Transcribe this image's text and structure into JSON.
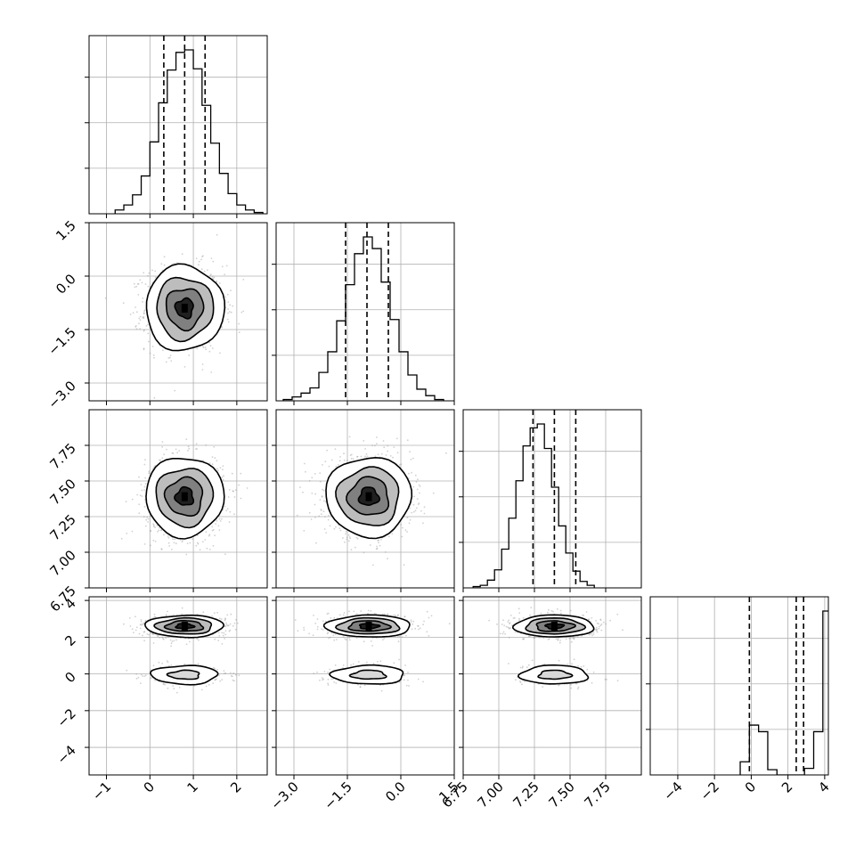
{
  "chart_data": {
    "type": "corner",
    "grid": true,
    "colors": {
      "hist": "#000000",
      "contour": "#000000",
      "samples": "#9a9a9a",
      "grid": "#b0b0b0",
      "quantile": "#000000"
    },
    "parameters": [
      {
        "range": [
          -1.4,
          2.7
        ],
        "ticks": [
          -1,
          0,
          1,
          2
        ],
        "tick_labels": [
          "−1",
          "0",
          "1",
          "2"
        ],
        "quantiles": [
          0.32,
          0.8,
          1.27
        ],
        "hist": {
          "edges": [
            -0.9,
            0.2
          ],
          "bin_width": 0.2,
          "counts": [
            3,
            7,
            15,
            30,
            57,
            88,
            114,
            128,
            130,
            115,
            86,
            56,
            32,
            16,
            7,
            3,
            1
          ],
          "hist_start": -0.8
        },
        "mean": 0.8,
        "sd": 0.45
      },
      {
        "range": [
          -3.5,
          1.5
        ],
        "ticks": [
          -3.0,
          -1.5,
          0.0,
          1.5
        ],
        "tick_labels": [
          "−3.0",
          "−1.5",
          "0.0",
          "1.5"
        ],
        "quantiles": [
          -1.55,
          -0.95,
          -0.35
        ],
        "hist": {
          "hist_start": -3.3,
          "bin_width": 0.25,
          "counts": [
            1,
            3,
            6,
            10,
            22,
            38,
            62,
            90,
            114,
            127,
            118,
            92,
            63,
            38,
            20,
            9,
            4,
            1
          ]
        },
        "mean": -0.9,
        "sd": 0.6
      },
      {
        "range": [
          6.75,
          8.0
        ],
        "ticks": [
          6.75,
          7.0,
          7.25,
          7.5,
          7.75
        ],
        "tick_labels": [
          "6.75",
          "7.00",
          "7.25",
          "7.50",
          "7.75"
        ],
        "quantiles": [
          7.24,
          7.39,
          7.54
        ],
        "hist": {
          "hist_start": 6.82,
          "bin_width": 0.05,
          "counts": [
            1,
            2,
            6,
            14,
            30,
            54,
            83,
            110,
            124,
            127,
            108,
            78,
            48,
            27,
            13,
            5,
            2
          ]
        },
        "mean": 7.39,
        "sd": 0.14
      },
      {
        "range": [
          -5.5,
          4.2
        ],
        "ticks": [
          -4,
          -2,
          0,
          2,
          4
        ],
        "tick_labels": [
          "−4",
          "−2",
          "0",
          "2",
          "4"
        ],
        "quantiles": [
          -0.1,
          2.45,
          2.85
        ],
        "hist": {
          "hist_start": -0.6,
          "bin_width": 0.5,
          "counts": [
            10,
            38,
            33,
            4,
            0,
            0,
            0,
            5,
            33,
            125,
            43,
            5
          ]
        },
        "modes": [
          {
            "mean": 2.6,
            "sd": 0.3,
            "weight": 0.75
          },
          {
            "mean": -0.05,
            "sd": 0.3,
            "weight": 0.25
          }
        ]
      }
    ],
    "row3_tick_labels": [
      "−4",
      "−2",
      "0",
      "2",
      "4"
    ]
  }
}
